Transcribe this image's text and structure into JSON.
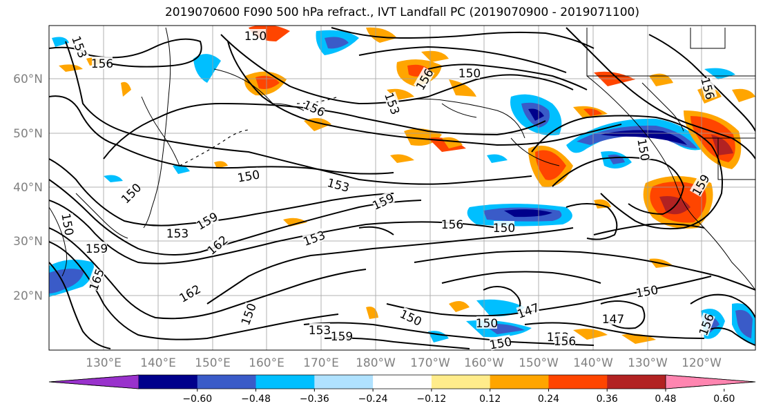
{
  "title": "2019070600 F090 500 hPa refract., IVT Landfall PC (2019070900 - 2019071100)",
  "lat_labels": [
    "60°N",
    "50°N",
    "40°N",
    "30°N",
    "20°N"
  ],
  "lon_labels": [
    "130°E",
    "140°E",
    "150°E",
    "160°E",
    "170°E",
    "180°W",
    "170°W",
    "160°W",
    "150°W",
    "140°W",
    "130°W",
    "120°W"
  ],
  "colorbar": {
    "colors": [
      "#9932CC",
      "#00008B",
      "#3A5BC8",
      "#00BFFF",
      "#B0E2FF",
      "#FFFFFF",
      "#FFEC8B",
      "#FFA500",
      "#FF4500",
      "#B22222",
      "#FF85B0"
    ],
    "ticks": [
      "−0.60",
      "−0.48",
      "−0.36",
      "−0.24",
      "−0.12",
      "0.12",
      "0.24",
      "0.36",
      "0.48",
      "0.60"
    ]
  },
  "contour_labels": [
    "153",
    "156",
    "150",
    "156",
    "153",
    "156",
    "150",
    "153",
    "150",
    "150",
    "153",
    "159",
    "159",
    "156",
    "153",
    "150",
    "150",
    "165",
    "159",
    "162",
    "162",
    "150",
    "150",
    "150",
    "147",
    "150",
    "147",
    "153",
    "156",
    "156",
    "153",
    "159",
    "150",
    "159",
    "156",
    "150"
  ],
  "grid": true
}
